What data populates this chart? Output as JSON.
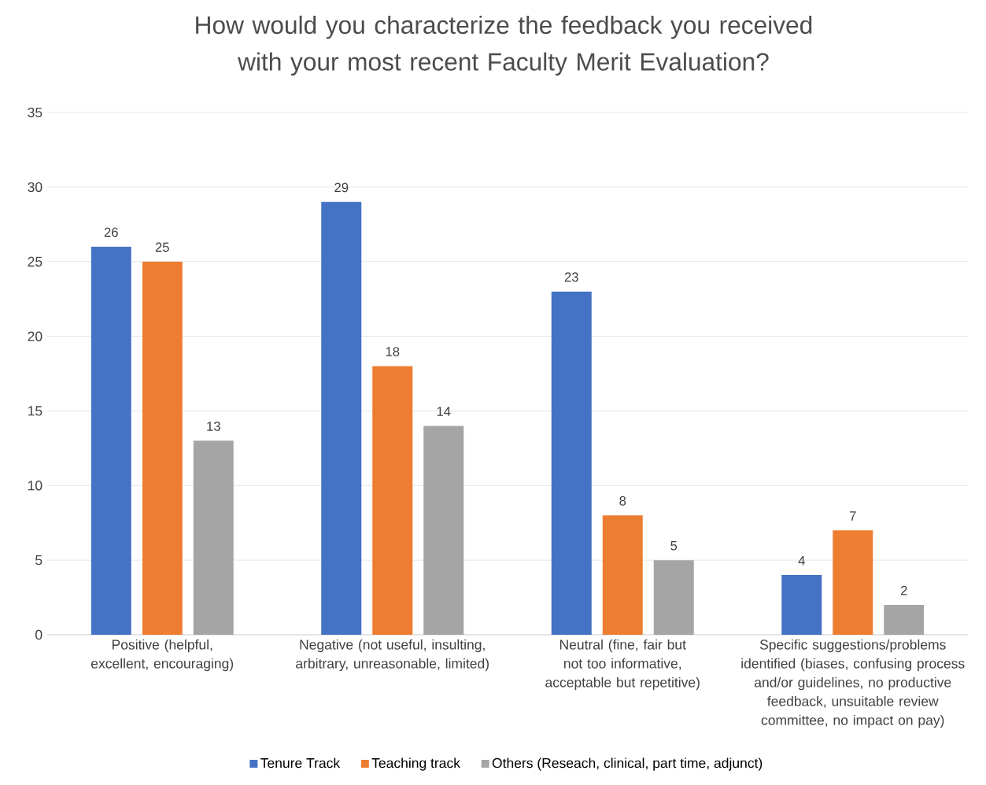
{
  "chart_data": {
    "type": "bar",
    "title": "How would you characterize the feedback you received with your most recent Faculty Merit Evaluation?",
    "categories": [
      "Positive (helpful, excellent, encouraging)",
      "Negative (not useful, insulting, arbitrary, unreasonable, limited)",
      "Neutral (fine, fair but not too informative, acceptable but repetitive)",
      "Specific suggestions/problems identified (biases, confusing process and/or guidelines, no productive feedback, unsuitable review committee, no impact on pay)"
    ],
    "series": [
      {
        "name": "Tenure Track",
        "color": "#4472c4",
        "values": [
          26,
          29,
          23,
          4
        ]
      },
      {
        "name": "Teaching track",
        "color": "#ed7d31",
        "values": [
          25,
          18,
          8,
          7
        ]
      },
      {
        "name": "Others (Reseach, clinical, part time, adjunct)",
        "color": "#a5a5a5",
        "values": [
          13,
          14,
          5,
          2
        ]
      }
    ],
    "ylim": [
      0,
      35
    ],
    "yticks": [
      0,
      5,
      10,
      15,
      20,
      25,
      30,
      35
    ],
    "grid": "y",
    "legend": "bottom",
    "data_labels": true
  }
}
